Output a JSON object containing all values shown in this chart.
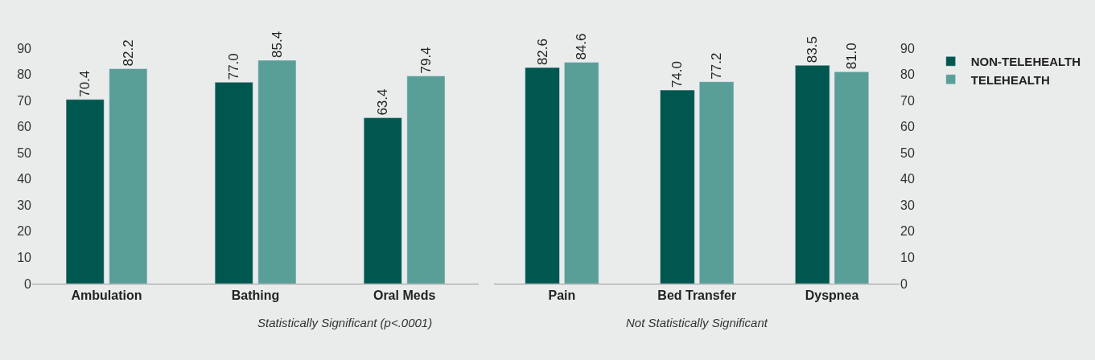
{
  "chart_data": [
    {
      "type": "bar",
      "categories": [
        "Ambulation",
        "Bathing",
        "Oral Meds"
      ],
      "series": [
        {
          "color": "#00574f",
          "values": [
            70.4,
            77.0,
            63.4
          ],
          "value_labels": [
            "70.4",
            "77.0",
            "63.4"
          ]
        },
        {
          "color": "#5a9e98",
          "values": [
            82.2,
            85.4,
            79.4
          ],
          "value_labels": [
            "82.2",
            "85.4",
            "79.4"
          ]
        }
      ],
      "ylim": [
        0,
        90
      ],
      "yticks": [
        0,
        10,
        20,
        30,
        40,
        50,
        60,
        70,
        80,
        90
      ],
      "grid": false,
      "annotations": [
        "Statistically Significant (p<.0001)"
      ]
    },
    {
      "type": "bar",
      "categories": [
        "Pain",
        "Bed Transfer",
        "Dyspnea"
      ],
      "series": [
        {
          "name": "NON-TELEHEALTH",
          "color": "#00574f",
          "values": [
            82.6,
            74.0,
            83.5
          ],
          "value_labels": [
            "82.6",
            "74.0",
            "83.5"
          ]
        },
        {
          "name": "TELEHEALTH",
          "color": "#5a9e98",
          "values": [
            84.6,
            77.2,
            81.0
          ],
          "value_labels": [
            "84.6",
            "77.2",
            "81.0"
          ]
        }
      ],
      "ylim": [
        0,
        90
      ],
      "yticks": [
        0,
        10,
        20,
        30,
        40,
        50,
        60,
        70,
        80,
        90
      ],
      "grid": false,
      "legend": "right",
      "annotations": [
        "Not Statistically Significant"
      ]
    }
  ]
}
